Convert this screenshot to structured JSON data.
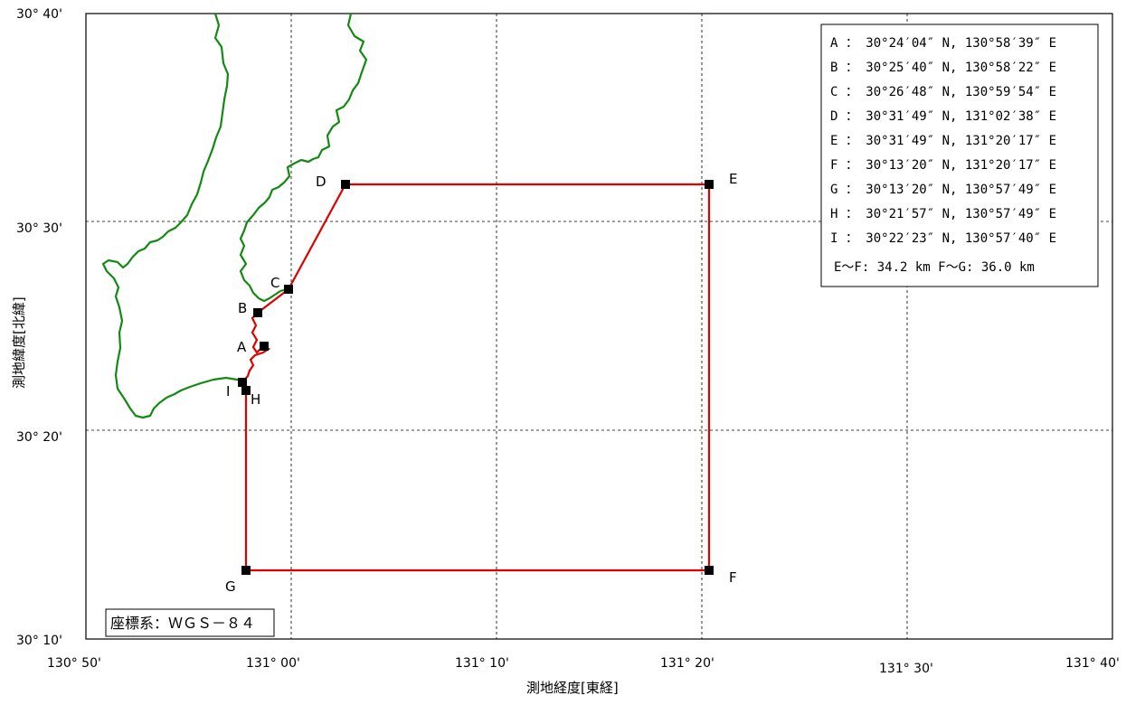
{
  "map": {
    "x_axis_title": "測地経度[東経]",
    "y_axis_title": "測地緯度[北緯]",
    "x_ticks": [
      "130° 50'",
      "131° 00'",
      "131° 10'",
      "131° 20'",
      "131° 30'",
      "131° 40'"
    ],
    "y_ticks": [
      "30° 40'",
      "30° 30'",
      "30° 20'",
      "30° 10'"
    ],
    "crs_label": "座標系：ＷＧＳ－８４",
    "colors": {
      "boundary": "#e00000",
      "coast": "#128a12",
      "grid": "#000000",
      "marker": "#000000"
    },
    "points": [
      {
        "id": "A",
        "label": "A"
      },
      {
        "id": "B",
        "label": "B"
      },
      {
        "id": "C",
        "label": "C"
      },
      {
        "id": "D",
        "label": "D"
      },
      {
        "id": "E",
        "label": "E"
      },
      {
        "id": "F",
        "label": "F"
      },
      {
        "id": "G",
        "label": "G"
      },
      {
        "id": "H",
        "label": "H"
      },
      {
        "id": "I",
        "label": "I"
      }
    ],
    "legend_rows": [
      "A ： 30°24′04″ N, 130°58′39″ E",
      "B ： 30°25′40″ N, 130°58′22″ E",
      "C ： 30°26′48″ N, 130°59′54″ E",
      "D ： 30°31′49″ N, 131°02′38″ E",
      "E ： 30°31′49″ N, 131°20′17″ E",
      "F ： 30°13′20″ N, 131°20′17″ E",
      "G ： 30°13′20″ N, 130°57′49″ E",
      "H ： 30°21′57″ N, 130°57′49″ E",
      "I ： 30°22′23″ N, 130°57′40″ E"
    ],
    "distances": "E～F: 34.2 km  F～G: 36.0 km"
  }
}
